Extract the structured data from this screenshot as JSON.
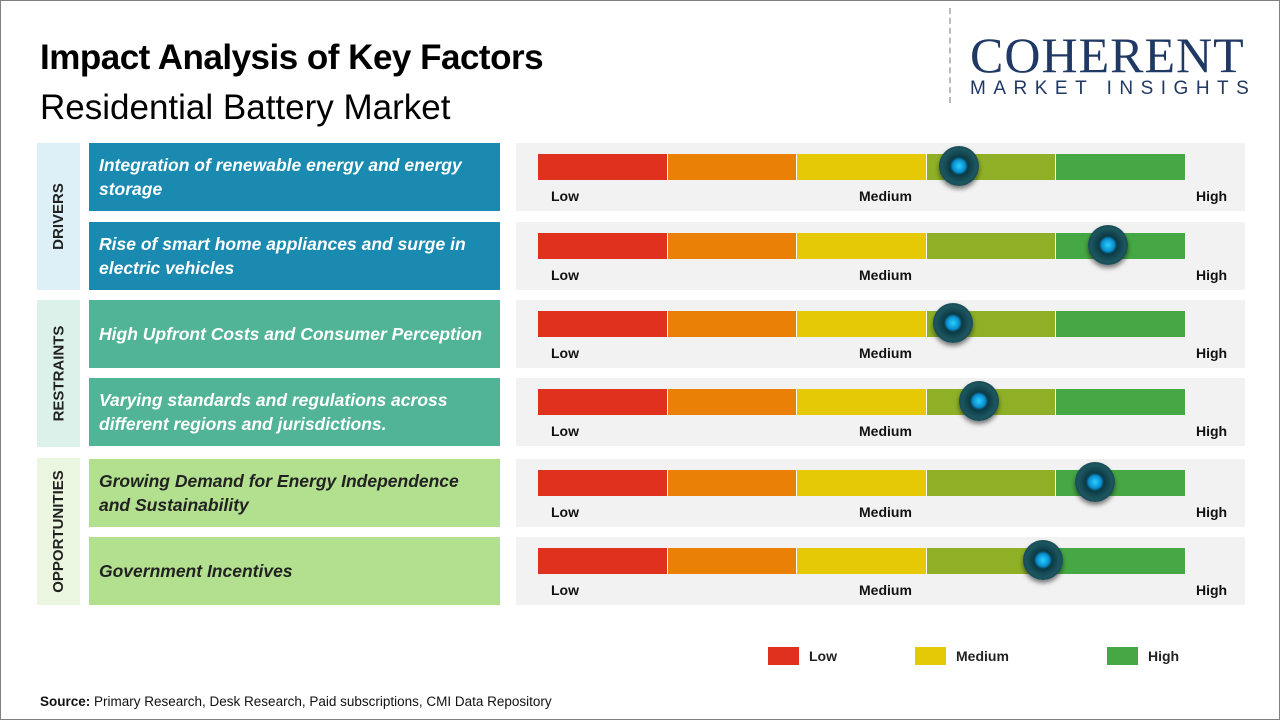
{
  "title": "Impact Analysis of Key Factors",
  "subtitle": "Residential Battery Market",
  "logo": {
    "line1": "COHERENT",
    "line2": "MARKET INSIGHTS"
  },
  "colors": {
    "drivers": "#1a8ab0",
    "restraints": "#52b496",
    "opportunities": "#b3e08e",
    "segments": [
      "#e0301e",
      "#ea8106",
      "#e6c906",
      "#8fb026",
      "#46a844"
    ]
  },
  "scale_labels": {
    "low": "Low",
    "medium": "Medium",
    "high": "High"
  },
  "chart_data": {
    "type": "gauge",
    "scale": "Low to High (0-1)",
    "categories": [
      {
        "name": "DRIVERS",
        "factors": [
          {
            "label": "Integration of renewable energy and energy storage",
            "value": 0.65
          },
          {
            "label": "Rise of smart home appliances and surge in electric vehicles",
            "value": 0.88
          }
        ]
      },
      {
        "name": "RESTRAINTS",
        "factors": [
          {
            "label": "High Upfront Costs and Consumer Perception",
            "value": 0.64
          },
          {
            "label": "Varying standards and regulations across different regions and jurisdictions.",
            "value": 0.68
          }
        ]
      },
      {
        "name": "OPPORTUNITIES",
        "factors": [
          {
            "label": "Growing Demand for Energy Independence and Sustainability",
            "value": 0.86
          },
          {
            "label": "Government Incentives",
            "value": 0.78
          }
        ]
      }
    ]
  },
  "legend": [
    {
      "label": "Low",
      "color": "#e0301e"
    },
    {
      "label": "Medium",
      "color": "#e6c906"
    },
    {
      "label": "High",
      "color": "#46a844"
    }
  ],
  "source": {
    "label": "Source:",
    "text": " Primary Research, Desk Research, Paid subscriptions, CMI Data Repository"
  }
}
